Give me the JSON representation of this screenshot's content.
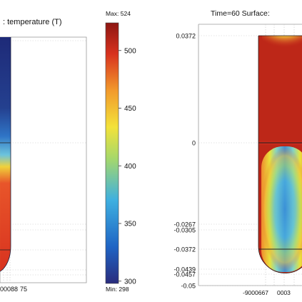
{
  "chart_data": [
    {
      "type": "heatmap",
      "title": ": temperature (T)",
      "x_tick_labels": [
        "00088",
        "75"
      ],
      "note": "left panel, cropped"
    },
    {
      "type": "colorbar",
      "max_label": "Max: 524",
      "min_label": "Min: 298",
      "ticks": [
        300,
        350,
        400,
        450,
        500
      ],
      "range": [
        298,
        524
      ],
      "colormap": [
        "#2a2c7d",
        "#1f64c4",
        "#3fb0e0",
        "#a6d86a",
        "#f3e23a",
        "#f29a2c",
        "#d8321f",
        "#8d1612"
      ]
    },
    {
      "type": "heatmap",
      "title": "Time=60  Surface:",
      "y_ticks": [
        {
          "value": 0.0372,
          "label": "0.0372"
        },
        {
          "value": 0,
          "label": "0"
        },
        {
          "value": -0.0267,
          "label": "-0.0267"
        },
        {
          "value": -0.0305,
          "label": "-0.0305"
        },
        {
          "value": -0.0372,
          "label": "-0.0372"
        },
        {
          "value": -0.0439,
          "label": "-0.0439"
        },
        {
          "value": -0.0457,
          "label": "-0.0457"
        },
        {
          "value": -0.05,
          "label": "-0.05"
        }
      ],
      "x_tick_labels": [
        "-9000667",
        "0003"
      ]
    }
  ]
}
